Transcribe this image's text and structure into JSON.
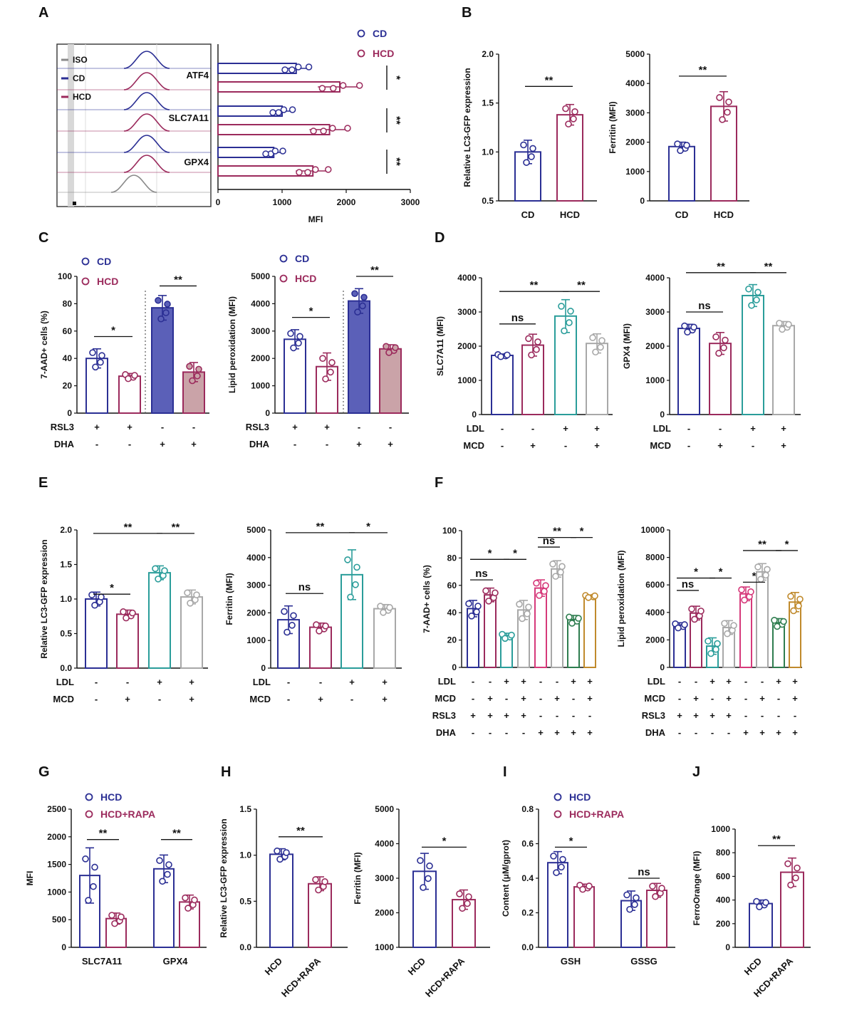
{
  "colors": {
    "cd": "#2b2f94",
    "hcd": "#9b2a5c",
    "teal": "#2a9d9a",
    "gray": "#a8a8a8",
    "pink": "#d6397a",
    "green": "#2e7d4f",
    "gold": "#c08a2c",
    "iso": "#8a8a8a",
    "cd_fill": "#5b60b8",
    "hcd_fill": "#caa3a8"
  },
  "chart_data": [
    {
      "panel": "A",
      "type": "histogram",
      "legend": [
        "ISO",
        "CD",
        "HCD"
      ],
      "channels": [
        "ATF4",
        "SLC7A11",
        "GPX4"
      ],
      "x_scale": "log"
    },
    {
      "panel": "A",
      "type": "bar",
      "orientation": "horizontal",
      "legend": [
        "CD",
        "HCD"
      ],
      "categories": [
        "ATF4",
        "SLC7A11",
        "GPX4"
      ],
      "series": [
        {
          "name": "CD",
          "values": [
            1220,
            1000,
            870
          ]
        },
        {
          "name": "HCD",
          "values": [
            1900,
            1740,
            1480
          ]
        }
      ],
      "xlabel": "MFI",
      "xlim": [
        0,
        3000
      ],
      "xticks": [
        0,
        1000,
        2000,
        3000
      ],
      "significance": [
        "*",
        "**",
        "**"
      ]
    },
    {
      "panel": "B",
      "type": "bar",
      "categories": [
        "CD",
        "HCD"
      ],
      "values": [
        1.0,
        1.38
      ],
      "ylabel": "Relative LC3-GFP expression",
      "ylim": [
        0.5,
        2.0
      ],
      "yticks": [
        "0.5",
        "1.0",
        "1.5",
        "2.0"
      ],
      "significance": [
        "**"
      ]
    },
    {
      "panel": "B",
      "type": "bar",
      "categories": [
        "CD",
        "HCD"
      ],
      "values": [
        1850,
        3220
      ],
      "ylabel": "Ferritin (MFI)",
      "ylim": [
        0,
        5000
      ],
      "yticks": [
        "0",
        "1000",
        "2000",
        "3000",
        "4000",
        "5000"
      ],
      "significance": [
        "**"
      ]
    },
    {
      "panel": "C",
      "type": "bar",
      "legend": [
        "CD",
        "HCD"
      ],
      "values": [
        40,
        27,
        77,
        30
      ],
      "ylabel": "7-AAD+ cells (%)",
      "ylim": [
        0,
        100
      ],
      "yticks": [
        "0",
        "20",
        "40",
        "60",
        "80",
        "100"
      ],
      "conditions": {
        "RSL3": [
          "+",
          "+",
          "-",
          "-"
        ],
        "DHA": [
          "-",
          "-",
          "+",
          "+"
        ]
      },
      "significance": [
        "*",
        "**"
      ]
    },
    {
      "panel": "C",
      "type": "bar",
      "legend": [
        "CD",
        "HCD"
      ],
      "values": [
        2700,
        1700,
        4100,
        2350
      ],
      "ylabel": "Lipid peroxidation (MFI)",
      "ylim": [
        0,
        5000
      ],
      "yticks": [
        "0",
        "1000",
        "2000",
        "3000",
        "4000",
        "5000"
      ],
      "conditions": {
        "RSL3": [
          "+",
          "+",
          "-",
          "-"
        ],
        "DHA": [
          "-",
          "-",
          "+",
          "+"
        ]
      },
      "significance": [
        "*",
        "**"
      ]
    },
    {
      "panel": "D",
      "type": "bar",
      "values": [
        1730,
        2030,
        2880,
        2080
      ],
      "ylabel": "SLC7A11 (MFI)",
      "ylim": [
        0,
        4000
      ],
      "yticks": [
        "0",
        "1000",
        "2000",
        "3000",
        "4000"
      ],
      "conditions": {
        "LDL": [
          "-",
          "-",
          "+",
          "+"
        ],
        "MCD": [
          "-",
          "+",
          "-",
          "+"
        ]
      },
      "significance": [
        "ns",
        "**",
        "**"
      ]
    },
    {
      "panel": "D",
      "type": "bar",
      "values": [
        2520,
        2080,
        3480,
        2600
      ],
      "ylabel": "GPX4 (MFI)",
      "ylim": [
        0,
        4000
      ],
      "yticks": [
        "0",
        "1000",
        "2000",
        "3000",
        "4000"
      ],
      "conditions": {
        "LDL": [
          "-",
          "-",
          "+",
          "+"
        ],
        "MCD": [
          "-",
          "+",
          "-",
          "+"
        ]
      },
      "significance": [
        "ns",
        "**",
        "**"
      ]
    },
    {
      "panel": "E",
      "type": "bar",
      "values": [
        1.0,
        0.78,
        1.38,
        1.03
      ],
      "ylabel": "Relative LC3-GFP expression",
      "ylim": [
        0,
        2.0
      ],
      "yticks": [
        "0.0",
        "0.5",
        "1.0",
        "1.5",
        "2.0"
      ],
      "conditions": {
        "LDL": [
          "-",
          "-",
          "+",
          "+"
        ],
        "MCD": [
          "-",
          "+",
          "-",
          "+"
        ]
      },
      "significance": [
        "*",
        "**",
        "**"
      ]
    },
    {
      "panel": "E",
      "type": "bar",
      "values": [
        1750,
        1480,
        3380,
        2150
      ],
      "ylabel": "Ferritin (MFI)",
      "ylim": [
        0,
        5000
      ],
      "yticks": [
        "0",
        "1000",
        "2000",
        "3000",
        "4000",
        "5000"
      ],
      "conditions": {
        "LDL": [
          "-",
          "-",
          "+",
          "+"
        ],
        "MCD": [
          "-",
          "+",
          "-",
          "+"
        ]
      },
      "significance": [
        "ns",
        "**",
        "*"
      ]
    },
    {
      "panel": "F",
      "type": "bar",
      "values": [
        43,
        53,
        23,
        42,
        58,
        72,
        35,
        52
      ],
      "ylabel": "7-AAD+ cells (%)",
      "ylim": [
        0,
        100
      ],
      "yticks": [
        "0",
        "20",
        "40",
        "60",
        "80",
        "100"
      ],
      "conditions": {
        "LDL": [
          "-",
          "-",
          "+",
          "+",
          "-",
          "-",
          "+",
          "+"
        ],
        "MCD": [
          "-",
          "+",
          "-",
          "+",
          "-",
          "+",
          "-",
          "+"
        ],
        "RSL3": [
          "+",
          "+",
          "+",
          "+",
          "-",
          "-",
          "-",
          "-"
        ],
        "DHA": [
          "-",
          "-",
          "-",
          "-",
          "+",
          "+",
          "+",
          "+"
        ]
      },
      "significance": [
        "ns",
        "*",
        "*",
        "ns",
        "**",
        "*"
      ]
    },
    {
      "panel": "F",
      "type": "bar",
      "values": [
        3050,
        3950,
        1550,
        2900,
        5350,
        6950,
        3250,
        4750
      ],
      "ylabel": "Lipid peroxidation (MFI)",
      "ylim": [
        0,
        10000
      ],
      "yticks": [
        "0",
        "2000",
        "4000",
        "6000",
        "8000",
        "10000"
      ],
      "conditions": {
        "LDL": [
          "-",
          "-",
          "+",
          "+",
          "-",
          "-",
          "+",
          "+"
        ],
        "MCD": [
          "-",
          "+",
          "-",
          "+",
          "-",
          "+",
          "-",
          "+"
        ],
        "RSL3": [
          "+",
          "+",
          "+",
          "+",
          "-",
          "-",
          "-",
          "-"
        ],
        "DHA": [
          "-",
          "-",
          "-",
          "-",
          "+",
          "+",
          "+",
          "+"
        ]
      },
      "significance": [
        "ns",
        "*",
        "*",
        "*",
        "**",
        "*"
      ]
    },
    {
      "panel": "G",
      "type": "bar",
      "legend": [
        "HCD",
        "HCD+RAPA"
      ],
      "categories": [
        "SLC7A11",
        "GPX4"
      ],
      "series": [
        {
          "name": "HCD",
          "values": [
            1300,
            1420
          ]
        },
        {
          "name": "HCD+RAPA",
          "values": [
            520,
            820
          ]
        }
      ],
      "ylabel": "MFI",
      "ylim": [
        0,
        2500
      ],
      "yticks": [
        "0",
        "500",
        "1000",
        "1500",
        "2000",
        "2500"
      ],
      "significance": [
        "**",
        "**"
      ]
    },
    {
      "panel": "H",
      "type": "bar",
      "categories": [
        "HCD",
        "HCD+RAPA"
      ],
      "values": [
        1.01,
        0.69
      ],
      "ylabel": "Relative LC3-GFP expression",
      "ylim": [
        0,
        1.5
      ],
      "yticks": [
        "0.0",
        "0.5",
        "1.0",
        "1.5"
      ],
      "significance": [
        "**"
      ]
    },
    {
      "panel": "H",
      "type": "bar",
      "categories": [
        "HCD",
        "HCD+RAPA"
      ],
      "values": [
        3200,
        2380
      ],
      "ylabel": "Ferritin (MFI)",
      "ylim": [
        1000,
        5000
      ],
      "yticks": [
        "1000",
        "2000",
        "3000",
        "4000",
        "5000"
      ],
      "significance": [
        "*"
      ]
    },
    {
      "panel": "I",
      "type": "bar",
      "legend": [
        "HCD",
        "HCD+RAPA"
      ],
      "categories": [
        "GSH",
        "GSSG"
      ],
      "series": [
        {
          "name": "HCD",
          "values": [
            0.49,
            0.27
          ]
        },
        {
          "name": "HCD+RAPA",
          "values": [
            0.35,
            0.33
          ]
        }
      ],
      "ylabel": "Content (μM/gprot)",
      "ylim": [
        0,
        0.8
      ],
      "yticks": [
        "0.0",
        "0.2",
        "0.4",
        "0.6",
        "0.8"
      ],
      "significance": [
        "*",
        "ns"
      ]
    },
    {
      "panel": "J",
      "type": "bar",
      "categories": [
        "HCD",
        "HCD+RAPA"
      ],
      "values": [
        370,
        635
      ],
      "ylabel": "FerroOrange (MFI)",
      "ylim": [
        0,
        1000
      ],
      "yticks": [
        "0",
        "200",
        "400",
        "600",
        "800",
        "1000"
      ],
      "significance": [
        "**"
      ]
    }
  ]
}
